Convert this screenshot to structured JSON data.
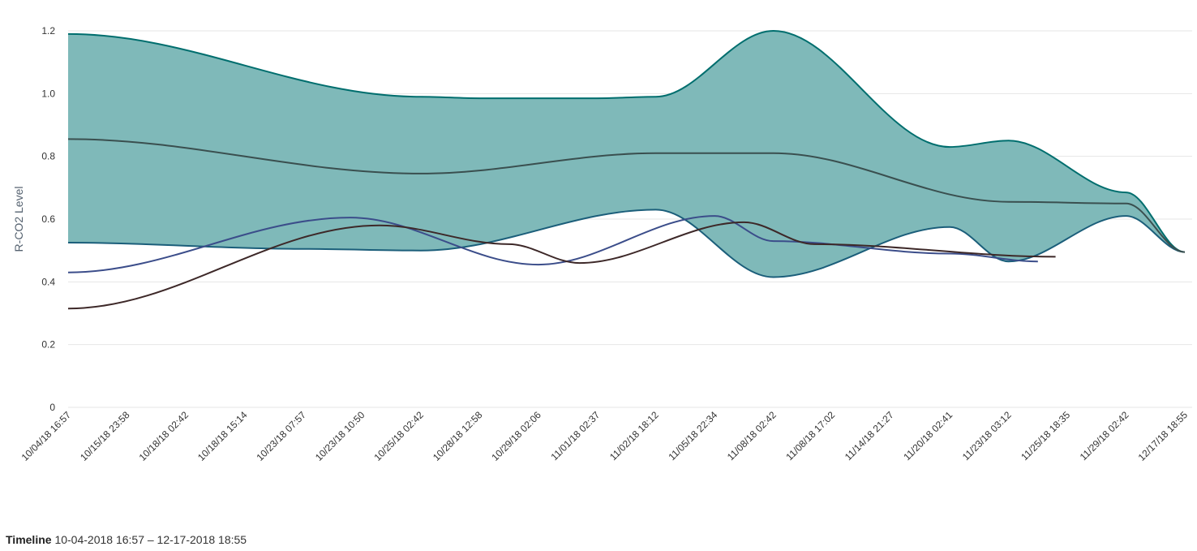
{
  "chart_data": {
    "type": "area",
    "ylabel": "R-CO2 Level",
    "ylim": [
      0,
      1.2
    ],
    "yticks": [
      "0",
      "0.2",
      "0.4",
      "0.6",
      "0.8",
      "1.0",
      "1.2"
    ],
    "categories": [
      "10/04/18 16:57",
      "10/15/18 23:58",
      "10/18/18 02:42",
      "10/18/18 15:14",
      "10/23/18 07:57",
      "10/23/18 10:50",
      "10/25/18 02:42",
      "10/28/18 12:58",
      "10/29/18 02:06",
      "11/01/18 02:37",
      "11/02/18 18:12",
      "11/05/18 22:34",
      "11/08/18 02:42",
      "11/08/18 17:02",
      "11/14/18 21:27",
      "11/20/18 02:41",
      "11/23/18 03:12",
      "11/25/18 18:35",
      "11/29/18 02:42",
      "12/17/18 18:55"
    ],
    "range_band": {
      "color": "#006e6e",
      "fill_color": "#7fb9b9",
      "upper": [
        [
          0,
          1.19
        ],
        [
          6,
          0.99
        ],
        [
          7,
          0.985
        ],
        [
          9,
          0.985
        ],
        [
          10,
          0.99
        ],
        [
          12,
          1.2
        ],
        [
          15,
          0.83
        ],
        [
          16,
          0.85
        ],
        [
          18,
          0.685
        ],
        [
          19,
          0.495
        ]
      ],
      "lower": [
        [
          0,
          0.525
        ],
        [
          4,
          0.505
        ],
        [
          6,
          0.5
        ],
        [
          10,
          0.63
        ],
        [
          12,
          0.415
        ],
        [
          15,
          0.575
        ],
        [
          16,
          0.465
        ],
        [
          18,
          0.61
        ],
        [
          19,
          0.495
        ]
      ]
    },
    "series": [
      {
        "color": "#3a4f4f",
        "points": [
          [
            0,
            0.855
          ],
          [
            6,
            0.745
          ],
          [
            10,
            0.81
          ],
          [
            12,
            0.81
          ],
          [
            16,
            0.655
          ],
          [
            18,
            0.65
          ],
          [
            19,
            0.495
          ]
        ]
      },
      {
        "color": "#3b4d8a",
        "points": [
          [
            0,
            0.43
          ],
          [
            4.8,
            0.605
          ],
          [
            8,
            0.455
          ],
          [
            11,
            0.61
          ],
          [
            12,
            0.53
          ],
          [
            15,
            0.49
          ],
          [
            16.5,
            0.465
          ]
        ]
      },
      {
        "color": "#3d2828",
        "points": [
          [
            0,
            0.315
          ],
          [
            5.3,
            0.58
          ],
          [
            7.5,
            0.52
          ],
          [
            8.7,
            0.46
          ],
          [
            11.5,
            0.59
          ],
          [
            12.7,
            0.52
          ],
          [
            16.8,
            0.48
          ]
        ]
      }
    ]
  },
  "timeline": {
    "label": "Timeline",
    "range": "10-04-2018 16:57 – 12-17-2018 18:55"
  }
}
